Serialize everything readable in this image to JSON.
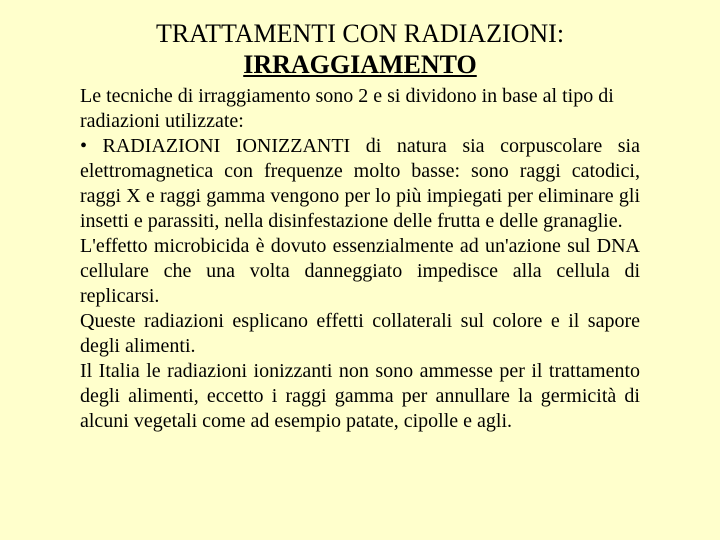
{
  "colors": {
    "background": "#ffffcc",
    "text": "#000000"
  },
  "typography": {
    "title_fontsize": 26,
    "body_fontsize": 20,
    "font_family": "Times New Roman"
  },
  "title": {
    "line1": "TRATTAMENTI CON RADIAZIONI:",
    "line2": "IRRAGGIAMENTO"
  },
  "body": {
    "intro": "Le tecniche di irraggiamento sono 2 e si dividono in base al tipo di radiazioni utilizzate:",
    "bullet_label": "• RADIAZIONI IONIZZANTI",
    "bullet_rest": " di natura sia corpuscolare sia elettromagnetica con frequenze molto basse: sono raggi catodici, raggi X e raggi gamma vengono per lo più impiegati per eliminare gli insetti e parassiti, nella disinfestazione delle frutta e delle granaglie.",
    "p2": "L'effetto microbicida è dovuto essenzialmente ad un'azione sul DNA cellulare che una volta danneggiato impedisce alla cellula di replicarsi.",
    "p3": "Queste radiazioni esplicano effetti collaterali sul colore e il sapore degli alimenti.",
    "p4": "Il Italia le radiazioni ionizzanti non sono ammesse  per il trattamento degli alimenti, eccetto i raggi gamma per annullare la germicità di alcuni vegetali come ad esempio patate, cipolle e agli."
  }
}
